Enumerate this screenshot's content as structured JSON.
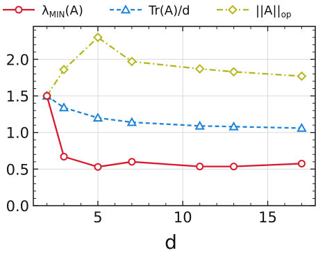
{
  "chart_data": {
    "type": "line",
    "xlabel": "d",
    "ylabel": "",
    "xlim": [
      1.2,
      17.8
    ],
    "ylim": [
      0.0,
      2.45
    ],
    "xticks": [
      5,
      10,
      15
    ],
    "yticks": [
      0.0,
      0.5,
      1.0,
      1.5,
      2.0
    ],
    "ytick_labels": [
      "0.0",
      "0.5",
      "1.0",
      "1.5",
      "2.0"
    ],
    "grid": true,
    "legend_position": "top",
    "x": [
      2,
      3,
      5,
      7,
      11,
      13,
      17
    ],
    "series": [
      {
        "name": "λMIN(A)",
        "legend_main": "λ",
        "legend_sub": "MIN",
        "legend_tail": "(A)",
        "color": "#d7192e",
        "marker": "circle",
        "line_style": "solid",
        "values": [
          1.5,
          0.67,
          0.53,
          0.6,
          0.535,
          0.535,
          0.575
        ]
      },
      {
        "name": "Tr(A)/d",
        "legend_main": "Tr(A)/d",
        "legend_sub": "",
        "legend_tail": "",
        "color": "#1c83d8",
        "marker": "triangle",
        "line_style": "dashed",
        "values": [
          1.5,
          1.34,
          1.2,
          1.14,
          1.09,
          1.08,
          1.06
        ]
      },
      {
        "name": "||A||op",
        "legend_main": "||A||",
        "legend_sub": "op",
        "legend_tail": "",
        "color": "#b5b61e",
        "marker": "diamond",
        "line_style": "dashdot",
        "values": [
          1.5,
          1.86,
          2.3,
          1.97,
          1.87,
          1.83,
          1.77
        ]
      }
    ]
  }
}
